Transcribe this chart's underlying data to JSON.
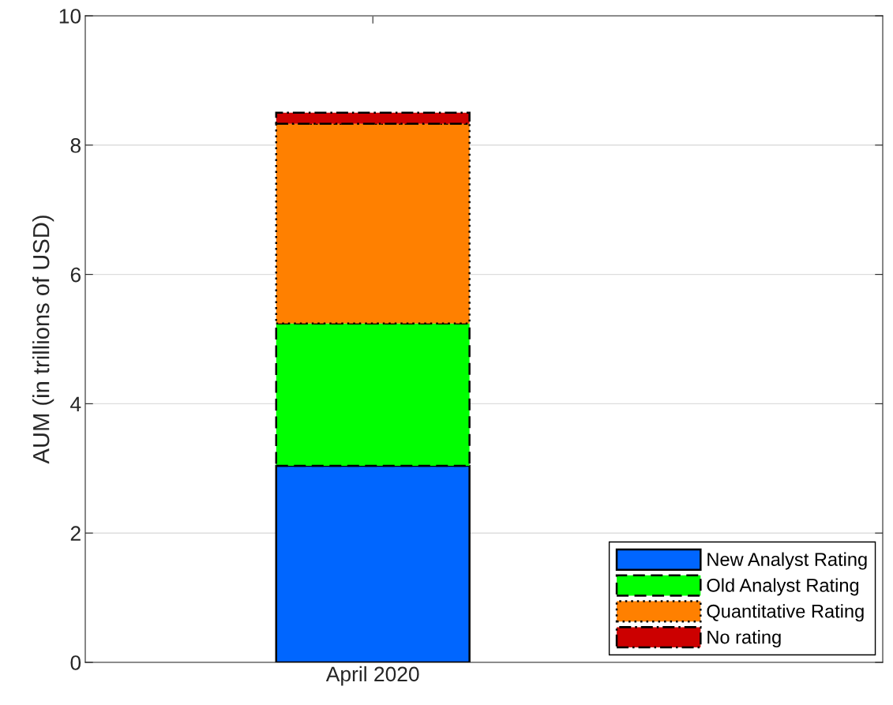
{
  "chart_data": {
    "type": "bar",
    "stacked": true,
    "ylabel": "AUM (in trillions of USD)",
    "categories": [
      "April 2020"
    ],
    "ylim": [
      0,
      10
    ],
    "yticks": [
      0,
      2,
      4,
      6,
      8,
      10
    ],
    "grid": "y",
    "legend": "bottom right",
    "series": [
      {
        "name": "New Analyst Rating",
        "color": "#0066ff",
        "values": [
          3.04
        ],
        "line_style": "solid"
      },
      {
        "name": "Old Analyst Rating",
        "color": "#00ff00",
        "values": [
          2.2
        ],
        "line_style": "dashed"
      },
      {
        "name": "Quantitative Rating",
        "color": "#ff8000",
        "values": [
          3.09
        ],
        "line_style": "dotted"
      },
      {
        "name": "No rating",
        "color": "#cc0000",
        "values": [
          0.17
        ],
        "line_style": "dashdot"
      }
    ]
  }
}
